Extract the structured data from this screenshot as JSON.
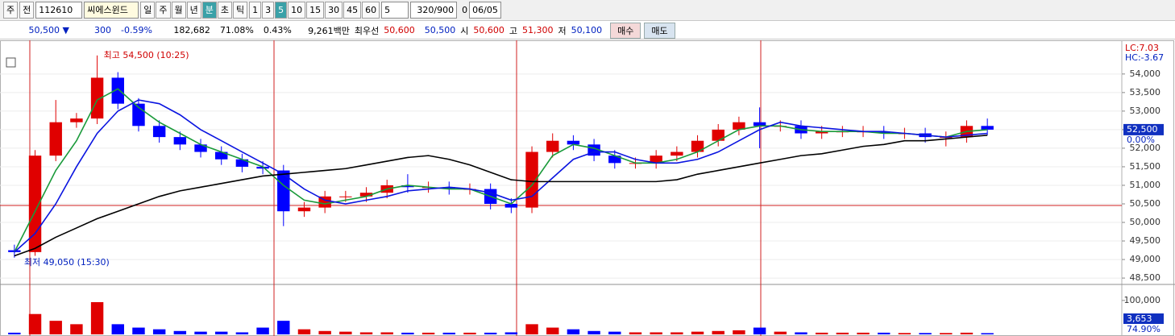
{
  "toolbar": {
    "market": "주",
    "period_mode": "전",
    "code": "112610",
    "name": "씨에스윈드",
    "periods": [
      "일",
      "주",
      "월",
      "년",
      "분",
      "초",
      "틱"
    ],
    "intervals": [
      "1",
      "3",
      "5",
      "10",
      "15",
      "30",
      "45",
      "60"
    ],
    "unit": "5",
    "count": "320/900",
    "check_label": "0",
    "date": "06/05"
  },
  "quote": {
    "price": "50,500 ▼",
    "change": "300",
    "change_pct": "-0.59%",
    "volume": "182,682",
    "vol_ratio": "71.08%",
    "turnover": "0.43%",
    "amount": "9,261백만",
    "best_label": "최우선",
    "ask": "50,600",
    "bid": "50,500",
    "open_label": "시",
    "open": "50,600",
    "high_label": "고",
    "high": "51,300",
    "low_label": "저",
    "low": "50,100",
    "buy": "매수",
    "sell": "매도"
  },
  "chart_data": {
    "type": "candlestick",
    "open": [
      49250,
      49200,
      51800,
      52700,
      52800,
      53900,
      53200,
      52600,
      52300,
      52100,
      51900,
      51700,
      51500,
      51400,
      50300,
      50400,
      50700,
      50700,
      50800,
      51000,
      50950,
      50950,
      50900,
      50900,
      50500,
      50400,
      51900,
      52200,
      52100,
      51800,
      51600,
      51600,
      51800,
      51900,
      52200,
      52500,
      52700,
      52600,
      52600,
      52400,
      52450,
      52450,
      52450,
      52400,
      52400,
      52300,
      52300,
      52600
    ],
    "high": [
      49400,
      51950,
      53300,
      52950,
      54500,
      54050,
      53350,
      52750,
      52450,
      52250,
      52050,
      51850,
      51650,
      51550,
      50550,
      50850,
      50850,
      50950,
      51150,
      51300,
      51100,
      51100,
      51050,
      51050,
      50650,
      52050,
      52400,
      52350,
      52250,
      51950,
      51750,
      51950,
      52050,
      52350,
      52650,
      52850,
      53100,
      52750,
      52750,
      52600,
      52600,
      52600,
      52600,
      52550,
      52550,
      52450,
      52750,
      52800
    ],
    "low": [
      49050,
      49100,
      51650,
      52550,
      52650,
      53050,
      52450,
      52150,
      51950,
      51750,
      51550,
      51350,
      51300,
      49900,
      50150,
      50250,
      50550,
      50550,
      50650,
      50800,
      50800,
      50750,
      50750,
      50350,
      50250,
      50250,
      51750,
      51950,
      51650,
      51450,
      51450,
      51450,
      51650,
      51750,
      52050,
      52350,
      52000,
      52450,
      52250,
      52250,
      52300,
      52300,
      52250,
      52250,
      52150,
      52050,
      52150,
      52350
    ],
    "close": [
      49200,
      51800,
      52700,
      52800,
      53900,
      53200,
      52600,
      52300,
      52100,
      51900,
      51700,
      51500,
      51450,
      50300,
      50400,
      50700,
      50700,
      50800,
      51000,
      50950,
      50950,
      50900,
      50900,
      50500,
      50400,
      51900,
      52200,
      52100,
      51800,
      51600,
      51600,
      51800,
      51900,
      52200,
      52500,
      52700,
      52600,
      52600,
      52400,
      52450,
      52450,
      52450,
      52400,
      52400,
      52300,
      52300,
      52600,
      52500
    ],
    "up_color": "#e00000",
    "down_color": "#0000ff",
    "moving_averages": [
      {
        "color": "#1a9a3a",
        "values": [
          49200,
          50300,
          51400,
          52200,
          53300,
          53600,
          53100,
          52700,
          52400,
          52100,
          51900,
          51700,
          51500,
          51000,
          50600,
          50500,
          50600,
          50700,
          50900,
          51000,
          50950,
          50900,
          50900,
          50700,
          50500,
          51000,
          51800,
          52100,
          52000,
          51800,
          51600,
          51600,
          51700,
          51900,
          52200,
          52500,
          52600,
          52600,
          52500,
          52450,
          52450,
          52450,
          52400,
          52400,
          52350,
          52300,
          52450,
          52500
        ]
      },
      {
        "color": "#0a14e0",
        "values": [
          49200,
          49700,
          50500,
          51500,
          52400,
          53000,
          53300,
          53200,
          52900,
          52500,
          52200,
          51900,
          51600,
          51300,
          50900,
          50600,
          50500,
          50600,
          50700,
          50850,
          50900,
          50950,
          50900,
          50800,
          50600,
          50700,
          51200,
          51700,
          51900,
          51900,
          51700,
          51600,
          51600,
          51700,
          51900,
          52200,
          52500,
          52700,
          52600,
          52550,
          52500,
          52450,
          52450,
          52400,
          52350,
          52300,
          52350,
          52400
        ]
      },
      {
        "color": "#000000",
        "values": [
          49100,
          49300,
          49600,
          49850,
          50100,
          50300,
          50500,
          50700,
          50850,
          50950,
          51050,
          51150,
          51250,
          51300,
          51350,
          51400,
          51450,
          51550,
          51650,
          51750,
          51800,
          51700,
          51550,
          51350,
          51150,
          51100,
          51100,
          51100,
          51100,
          51100,
          51100,
          51100,
          51150,
          51300,
          51400,
          51500,
          51600,
          51700,
          51800,
          51850,
          51950,
          52050,
          52100,
          52200,
          52200,
          52250,
          52300,
          52350
        ]
      }
    ],
    "ylim": [
      48350,
      54800
    ],
    "yticks": [
      {
        "value": 48500,
        "label": "48,500"
      },
      {
        "value": 49000,
        "label": "49,000"
      },
      {
        "value": 49500,
        "label": "49,500"
      },
      {
        "value": 50000,
        "label": "50,000"
      },
      {
        "value": 50500,
        "label": "50,500"
      },
      {
        "value": 51000,
        "label": "51,000"
      },
      {
        "value": 51500,
        "label": "51,500"
      },
      {
        "value": 52000,
        "label": "52,000"
      },
      {
        "value": 52500,
        "label": "52,500"
      },
      {
        "value": 53000,
        "label": "53,000"
      },
      {
        "value": 53500,
        "label": "53,500"
      },
      {
        "value": 54000,
        "label": "54,000"
      }
    ],
    "grid": true,
    "high_text": "최고 54,500 (10:25)",
    "low_text": "최저 49,050 (15:30)",
    "lc_label": "LC:7.03",
    "hc_label": "HC:-3.67",
    "last_price": {
      "value": 52500,
      "label": "52,500"
    },
    "last_pct": "0.00%",
    "volume": {
      "values": [
        5000,
        60000,
        40000,
        30000,
        95000,
        30000,
        20000,
        15000,
        10000,
        8000,
        8000,
        6000,
        20000,
        40000,
        15000,
        10000,
        8000,
        6000,
        6000,
        5000,
        5000,
        5000,
        5000,
        5000,
        6000,
        30000,
        20000,
        15000,
        10000,
        8000,
        6000,
        6000,
        6000,
        8000,
        10000,
        12000,
        20000,
        8000,
        6000,
        5000,
        5000,
        5000,
        5000,
        4000,
        4000,
        4000,
        5000,
        3653
      ],
      "ylim": [
        0,
        140000
      ],
      "yticks": [
        {
          "value": 100000,
          "label": "100,000"
        }
      ],
      "last_label": "3,653",
      "ratio_label": "74.90%"
    }
  }
}
